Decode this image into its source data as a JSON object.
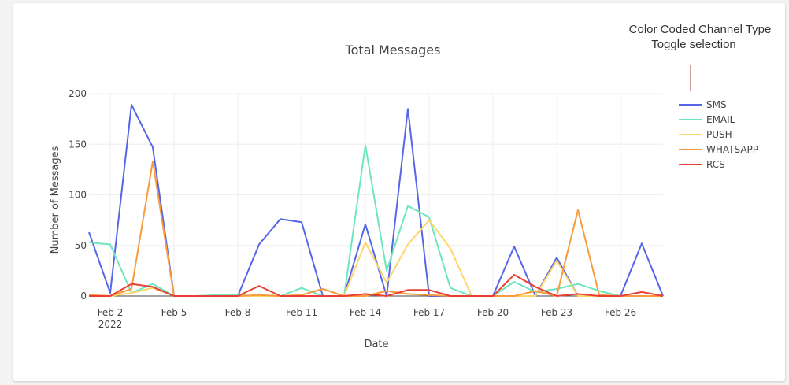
{
  "annotation": {
    "line1": "Color Coded Channel Type",
    "line2": "Toggle selection",
    "color": "#a93a3a"
  },
  "chart_data": {
    "type": "line",
    "title": "Total Messages",
    "xlabel": "Date",
    "ylabel": "Number of Messages",
    "ylim": [
      0,
      200
    ],
    "yticks": [
      0,
      50,
      100,
      150,
      200
    ],
    "xlim": [
      "2022-02-01",
      "2022-02-28"
    ],
    "xticks": [
      {
        "date": "2022-02-02",
        "label": "Feb 2",
        "sublabel": "2022"
      },
      {
        "date": "2022-02-05",
        "label": "Feb 5"
      },
      {
        "date": "2022-02-08",
        "label": "Feb 8"
      },
      {
        "date": "2022-02-11",
        "label": "Feb 11"
      },
      {
        "date": "2022-02-14",
        "label": "Feb 14"
      },
      {
        "date": "2022-02-17",
        "label": "Feb 17"
      },
      {
        "date": "2022-02-20",
        "label": "Feb 20"
      },
      {
        "date": "2022-02-23",
        "label": "Feb 23"
      },
      {
        "date": "2022-02-26",
        "label": "Feb 26"
      }
    ],
    "x": [
      "2022-02-01",
      "2022-02-02",
      "2022-02-03",
      "2022-02-04",
      "2022-02-05",
      "2022-02-06",
      "2022-02-07",
      "2022-02-08",
      "2022-02-09",
      "2022-02-10",
      "2022-02-11",
      "2022-02-12",
      "2022-02-13",
      "2022-02-14",
      "2022-02-15",
      "2022-02-16",
      "2022-02-17",
      "2022-02-18",
      "2022-02-19",
      "2022-02-20",
      "2022-02-21",
      "2022-02-22",
      "2022-02-23",
      "2022-02-24",
      "2022-02-25",
      "2022-02-26",
      "2022-02-27",
      "2022-02-28"
    ],
    "grid": true,
    "legend_position": "right",
    "series": [
      {
        "name": "SMS",
        "color": "#5566e8",
        "values": [
          63,
          3,
          189,
          147,
          0,
          0,
          0,
          0,
          51,
          76,
          73,
          0,
          0,
          71,
          0,
          185,
          0,
          0,
          0,
          0,
          49,
          0,
          38,
          0,
          0,
          0,
          52,
          0
        ]
      },
      {
        "name": "EMAIL",
        "color": "#6ee6bf",
        "values": [
          53,
          51,
          3,
          12,
          0,
          0,
          1,
          1,
          0,
          0,
          8,
          0,
          0,
          149,
          25,
          89,
          78,
          8,
          0,
          0,
          14,
          4,
          7,
          12,
          5,
          0,
          0,
          0
        ]
      },
      {
        "name": "PUSH",
        "color": "#fed56a",
        "values": [
          0,
          0,
          3,
          8,
          0,
          0,
          0,
          0,
          0,
          0,
          0,
          0,
          0,
          53,
          13,
          51,
          75,
          47,
          0,
          0,
          0,
          0,
          35,
          0,
          0,
          0,
          0,
          0
        ]
      },
      {
        "name": "WHATSAPP",
        "color": "#f99a3c",
        "values": [
          1,
          0,
          7,
          133,
          0,
          0,
          0,
          0,
          1,
          0,
          1,
          7,
          0,
          0,
          5,
          2,
          1,
          0,
          0,
          0,
          0,
          5,
          0,
          85,
          1,
          0,
          0,
          0
        ]
      },
      {
        "name": "RCS",
        "color": "#ea4033",
        "values": [
          0,
          0,
          12,
          9,
          0,
          0,
          0,
          0,
          10,
          0,
          0,
          0,
          0,
          2,
          0,
          6,
          6,
          0,
          0,
          0,
          21,
          9,
          0,
          2,
          0,
          0,
          4,
          0
        ]
      }
    ]
  }
}
